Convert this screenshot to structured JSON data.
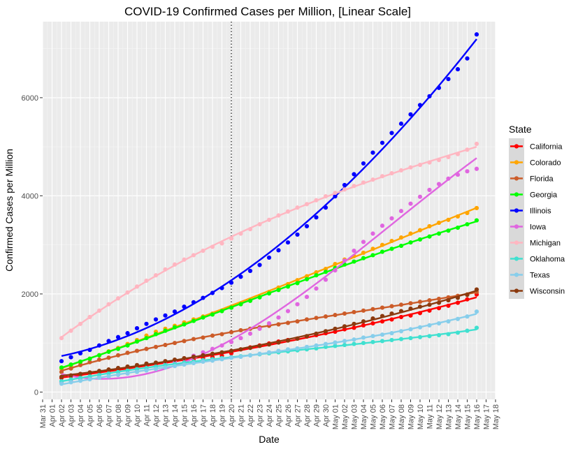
{
  "chart_data": {
    "type": "line",
    "title": "COVID-19 Confirmed Cases per Million, [Linear Scale]",
    "xlabel": "Date",
    "ylabel": "Confirmed Cases per Million",
    "xlim": [
      "2020-03-31",
      "2020-05-18"
    ],
    "ylim": [
      -150,
      7550
    ],
    "yticks": [
      0,
      2000,
      4000,
      6000
    ],
    "ytick_labels": [
      "0",
      "2000",
      "4000",
      "6000"
    ],
    "xticks": [
      "2020-03-31",
      "2020-04-01",
      "2020-04-02",
      "2020-04-03",
      "2020-04-04",
      "2020-04-05",
      "2020-04-06",
      "2020-04-07",
      "2020-04-08",
      "2020-04-09",
      "2020-04-10",
      "2020-04-11",
      "2020-04-12",
      "2020-04-13",
      "2020-04-14",
      "2020-04-15",
      "2020-04-16",
      "2020-04-17",
      "2020-04-18",
      "2020-04-19",
      "2020-04-20",
      "2020-04-21",
      "2020-04-22",
      "2020-04-23",
      "2020-04-24",
      "2020-04-25",
      "2020-04-26",
      "2020-04-27",
      "2020-04-28",
      "2020-04-29",
      "2020-04-30",
      "2020-05-01",
      "2020-05-02",
      "2020-05-03",
      "2020-05-04",
      "2020-05-05",
      "2020-05-06",
      "2020-05-07",
      "2020-05-08",
      "2020-05-09",
      "2020-05-10",
      "2020-05-11",
      "2020-05-12",
      "2020-05-13",
      "2020-05-14",
      "2020-05-15",
      "2020-05-16",
      "2020-05-17",
      "2020-05-18"
    ],
    "xtick_labels": [
      "Mar 31",
      "Apr 01",
      "Apr 02",
      "Apr 03",
      "Apr 04",
      "Apr 05",
      "Apr 06",
      "Apr 07",
      "Apr 08",
      "Apr 09",
      "Apr 10",
      "Apr 11",
      "Apr 12",
      "Apr 13",
      "Apr 14",
      "Apr 15",
      "Apr 16",
      "Apr 17",
      "Apr 18",
      "Apr 19",
      "Apr 20",
      "Apr 21",
      "Apr 22",
      "Apr 23",
      "Apr 24",
      "Apr 25",
      "Apr 26",
      "Apr 27",
      "Apr 28",
      "Apr 29",
      "Apr 30",
      "May 01",
      "May 02",
      "May 03",
      "May 04",
      "May 05",
      "May 06",
      "May 07",
      "May 08",
      "May 09",
      "May 10",
      "May 11",
      "May 12",
      "May 13",
      "May 14",
      "May 15",
      "May 16",
      "May 17",
      "May 18"
    ],
    "vline": "2020-04-20",
    "x": [
      "2020-04-02",
      "2020-04-03",
      "2020-04-04",
      "2020-04-05",
      "2020-04-06",
      "2020-04-07",
      "2020-04-08",
      "2020-04-09",
      "2020-04-10",
      "2020-04-11",
      "2020-04-12",
      "2020-04-13",
      "2020-04-14",
      "2020-04-15",
      "2020-04-16",
      "2020-04-17",
      "2020-04-18",
      "2020-04-19",
      "2020-04-20",
      "2020-04-21",
      "2020-04-22",
      "2020-04-23",
      "2020-04-24",
      "2020-04-25",
      "2020-04-26",
      "2020-04-27",
      "2020-04-28",
      "2020-04-29",
      "2020-04-30",
      "2020-05-01",
      "2020-05-02",
      "2020-05-03",
      "2020-05-04",
      "2020-05-05",
      "2020-05-06",
      "2020-05-07",
      "2020-05-08",
      "2020-05-09",
      "2020-05-10",
      "2020-05-11",
      "2020-05-12",
      "2020-05-13",
      "2020-05-14",
      "2020-05-15",
      "2020-05-16"
    ],
    "legend_title": "State",
    "legend_position": "right",
    "grid": true,
    "series": [
      {
        "name": "California",
        "color": "#ff0000",
        "values": [
          290,
          320,
          350,
          380,
          400,
          430,
          460,
          490,
          520,
          540,
          570,
          590,
          620,
          650,
          670,
          690,
          710,
          740,
          790,
          870,
          910,
          950,
          990,
          1030,
          1060,
          1090,
          1130,
          1160,
          1200,
          1230,
          1280,
          1310,
          1360,
          1400,
          1440,
          1480,
          1530,
          1560,
          1610,
          1660,
          1710,
          1760,
          1820,
          1890,
          1990
        ]
      },
      {
        "name": "Colorado",
        "color": "#ffa500",
        "values": [
          470,
          530,
          600,
          680,
          750,
          830,
          900,
          980,
          1060,
          1150,
          1230,
          1290,
          1350,
          1420,
          1480,
          1540,
          1600,
          1660,
          1720,
          1800,
          1870,
          1940,
          2040,
          2130,
          2200,
          2280,
          2360,
          2440,
          2510,
          2610,
          2700,
          2770,
          2840,
          2920,
          3000,
          3080,
          3150,
          3230,
          3300,
          3380,
          3450,
          3510,
          3580,
          3650,
          3750
        ]
      },
      {
        "name": "Florida",
        "color": "#cc5c29",
        "values": [
          410,
          480,
          550,
          610,
          660,
          700,
          750,
          800,
          840,
          880,
          920,
          960,
          1000,
          1040,
          1080,
          1110,
          1150,
          1180,
          1220,
          1260,
          1290,
          1320,
          1350,
          1380,
          1410,
          1440,
          1480,
          1510,
          1540,
          1570,
          1600,
          1630,
          1660,
          1690,
          1720,
          1750,
          1780,
          1810,
          1840,
          1870,
          1900,
          1930,
          1960,
          1990,
          2040
        ]
      },
      {
        "name": "Georgia",
        "color": "#00ff00",
        "values": [
          500,
          560,
          620,
          680,
          750,
          820,
          880,
          950,
          1030,
          1100,
          1180,
          1250,
          1320,
          1380,
          1450,
          1520,
          1580,
          1650,
          1720,
          1790,
          1860,
          1930,
          2010,
          2080,
          2150,
          2220,
          2300,
          2380,
          2450,
          2530,
          2600,
          2660,
          2730,
          2790,
          2860,
          2920,
          2980,
          3050,
          3110,
          3170,
          3230,
          3290,
          3350,
          3420,
          3500
        ]
      },
      {
        "name": "Illinois",
        "color": "#0000ff",
        "values": [
          630,
          710,
          790,
          860,
          950,
          1040,
          1120,
          1200,
          1300,
          1390,
          1480,
          1560,
          1640,
          1740,
          1830,
          1920,
          2020,
          2120,
          2230,
          2350,
          2470,
          2590,
          2740,
          2890,
          3050,
          3210,
          3380,
          3560,
          3760,
          3990,
          4220,
          4440,
          4660,
          4880,
          5080,
          5280,
          5470,
          5660,
          5850,
          6030,
          6200,
          6380,
          6580,
          6800,
          7290
        ]
      },
      {
        "name": "Iowa",
        "color": "#e066e0",
        "values": [
          200,
          230,
          260,
          280,
          300,
          320,
          350,
          380,
          420,
          470,
          520,
          570,
          620,
          680,
          740,
          810,
          880,
          950,
          1020,
          1100,
          1190,
          1290,
          1400,
          1520,
          1650,
          1790,
          1940,
          2110,
          2290,
          2480,
          2680,
          2880,
          3060,
          3230,
          3390,
          3540,
          3690,
          3840,
          3980,
          4120,
          4240,
          4350,
          4430,
          4500,
          4550
        ]
      },
      {
        "name": "Michigan",
        "color": "#ffb6c1",
        "values": [
          1100,
          1250,
          1390,
          1530,
          1660,
          1790,
          1910,
          2030,
          2150,
          2270,
          2380,
          2500,
          2600,
          2700,
          2790,
          2880,
          2960,
          3030,
          3130,
          3230,
          3320,
          3420,
          3510,
          3600,
          3680,
          3760,
          3830,
          3910,
          3990,
          4060,
          4130,
          4200,
          4270,
          4330,
          4400,
          4460,
          4520,
          4580,
          4630,
          4680,
          4730,
          4790,
          4850,
          4940,
          5060
        ]
      },
      {
        "name": "Oklahoma",
        "color": "#40e0d0",
        "values": [
          220,
          260,
          290,
          320,
          350,
          380,
          410,
          440,
          470,
          490,
          520,
          550,
          570,
          600,
          620,
          650,
          670,
          690,
          710,
          730,
          750,
          770,
          790,
          810,
          830,
          850,
          870,
          890,
          920,
          940,
          960,
          980,
          1000,
          1020,
          1040,
          1060,
          1080,
          1100,
          1120,
          1140,
          1160,
          1180,
          1210,
          1250,
          1310
        ]
      },
      {
        "name": "Texas",
        "color": "#87ceeb",
        "values": [
          170,
          200,
          230,
          260,
          290,
          320,
          350,
          380,
          410,
          440,
          470,
          500,
          530,
          560,
          590,
          620,
          640,
          670,
          700,
          720,
          750,
          780,
          810,
          840,
          870,
          890,
          920,
          950,
          980,
          1010,
          1040,
          1070,
          1110,
          1140,
          1170,
          1200,
          1240,
          1280,
          1320,
          1360,
          1400,
          1440,
          1490,
          1540,
          1640
        ]
      },
      {
        "name": "Wisconsin",
        "color": "#8b3a0f",
        "values": [
          310,
          340,
          370,
          400,
          430,
          460,
          490,
          520,
          550,
          580,
          600,
          630,
          660,
          690,
          720,
          750,
          780,
          810,
          840,
          870,
          900,
          940,
          970,
          1010,
          1050,
          1090,
          1140,
          1190,
          1240,
          1290,
          1340,
          1390,
          1440,
          1500,
          1550,
          1600,
          1650,
          1700,
          1740,
          1780,
          1820,
          1870,
          1920,
          1980,
          2090
        ]
      }
    ]
  }
}
